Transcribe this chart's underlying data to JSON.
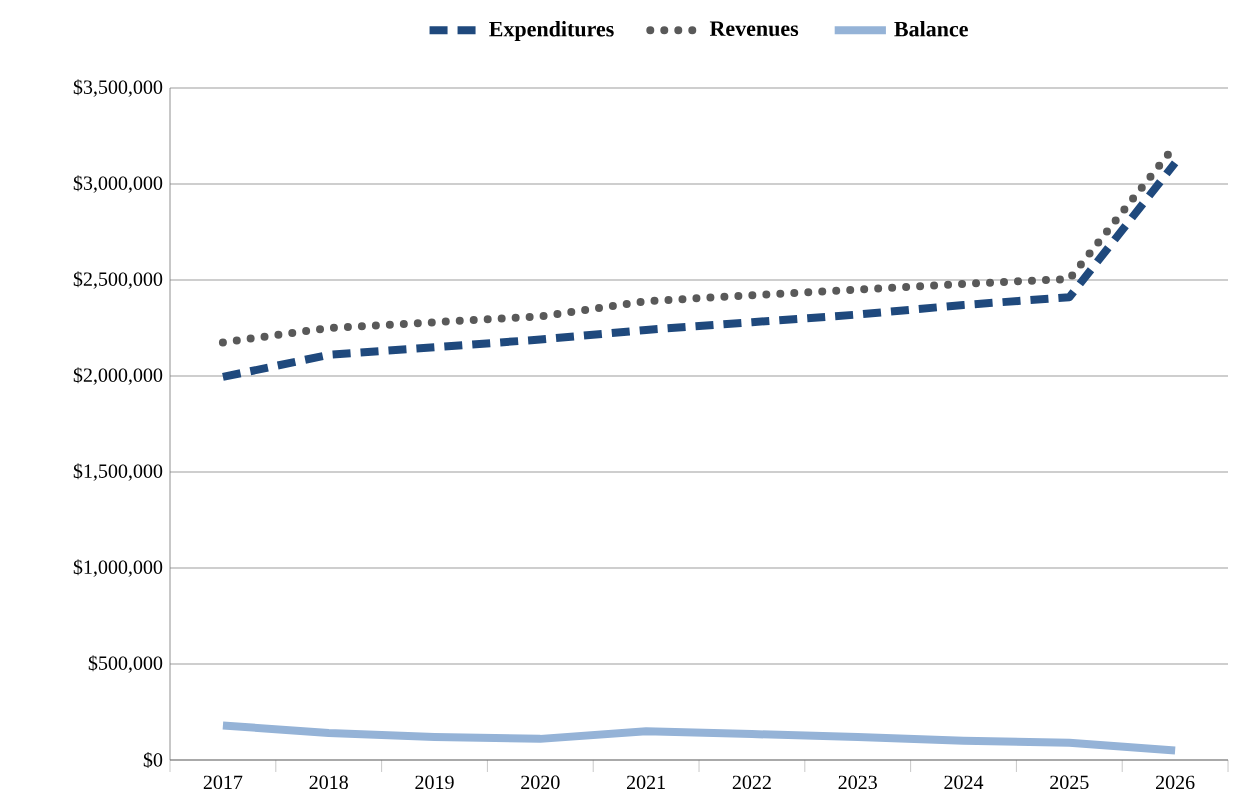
{
  "chart_data": {
    "type": "line",
    "categories": [
      "2017",
      "2018",
      "2019",
      "2020",
      "2021",
      "2022",
      "2023",
      "2024",
      "2025",
      "2026"
    ],
    "series": [
      {
        "name": "Expenditures",
        "color": "#1f497d",
        "line_style": "dashed",
        "values": [
          1995000,
          2110000,
          2150000,
          2190000,
          2240000,
          2280000,
          2320000,
          2370000,
          2410000,
          3110000
        ]
      },
      {
        "name": "Revenues",
        "color": "#595959",
        "line_style": "dotted",
        "values": [
          2175000,
          2250000,
          2280000,
          2310000,
          2390000,
          2420000,
          2450000,
          2480000,
          2505000,
          3200000
        ]
      },
      {
        "name": "Balance",
        "color": "#95b3d7",
        "line_style": "solid",
        "values": [
          180000,
          140000,
          120000,
          110000,
          150000,
          135000,
          120000,
          100000,
          90000,
          50000
        ]
      }
    ],
    "ylim": [
      0,
      3500000
    ],
    "yticks": [
      {
        "value": 0,
        "label": "$0"
      },
      {
        "value": 500000,
        "label": "$500,000"
      },
      {
        "value": 1000000,
        "label": "$1,000,000"
      },
      {
        "value": 1500000,
        "label": "$1,500,000"
      },
      {
        "value": 2000000,
        "label": "$2,000,000"
      },
      {
        "value": 2500000,
        "label": "$2,500,000"
      },
      {
        "value": 3000000,
        "label": "$3,000,000"
      },
      {
        "value": 3500000,
        "label": "$3,500,000"
      }
    ],
    "grid": "y",
    "legend": "top"
  }
}
